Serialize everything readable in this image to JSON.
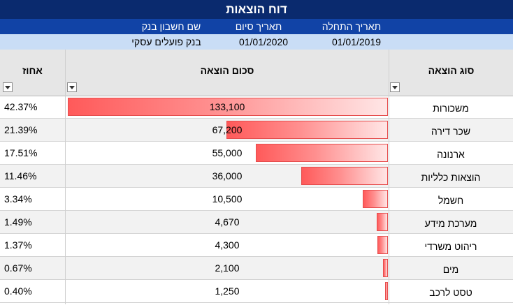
{
  "report": {
    "title": "דוח הוצאות",
    "meta_labels": {
      "start_date": "תאריך התחלה",
      "end_date": "תאריך סיום",
      "bank_account": "שם חשבון בנק"
    },
    "meta_values": {
      "start_date": "01/01/2019",
      "end_date": "01/01/2020",
      "bank_account": "בנק פועלים עסקי"
    }
  },
  "table": {
    "headers": {
      "category": "סוג הוצאה",
      "amount": "סכום הוצאה",
      "percent": "אחוז"
    },
    "rows": [
      {
        "category": "משכורות",
        "amount": "133,100",
        "amount_value": 133100,
        "percent": "42.37%"
      },
      {
        "category": "שכר דירה",
        "amount": "67,200",
        "amount_value": 67200,
        "percent": "21.39%"
      },
      {
        "category": "ארנונה",
        "amount": "55,000",
        "amount_value": 55000,
        "percent": "17.51%"
      },
      {
        "category": "הוצאות כלליות",
        "amount": "36,000",
        "amount_value": 36000,
        "percent": "11.46%"
      },
      {
        "category": "חשמל",
        "amount": "10,500",
        "amount_value": 10500,
        "percent": "3.34%"
      },
      {
        "category": "מערכת מידע",
        "amount": "4,670",
        "amount_value": 4670,
        "percent": "1.49%"
      },
      {
        "category": "ריהוט משרדי",
        "amount": "4,300",
        "amount_value": 4300,
        "percent": "1.37%"
      },
      {
        "category": "מים",
        "amount": "2,100",
        "amount_value": 2100,
        "percent": "0.67%"
      },
      {
        "category": "טסט לרכב",
        "amount": "1,250",
        "amount_value": 1250,
        "percent": "0.40%"
      }
    ]
  },
  "colors": {
    "title_bg": "#0a2a6e",
    "meta_header_bg": "#1143a6",
    "meta_values_bg": "#c9ddf6",
    "data_bar": "#ff5a5a"
  }
}
